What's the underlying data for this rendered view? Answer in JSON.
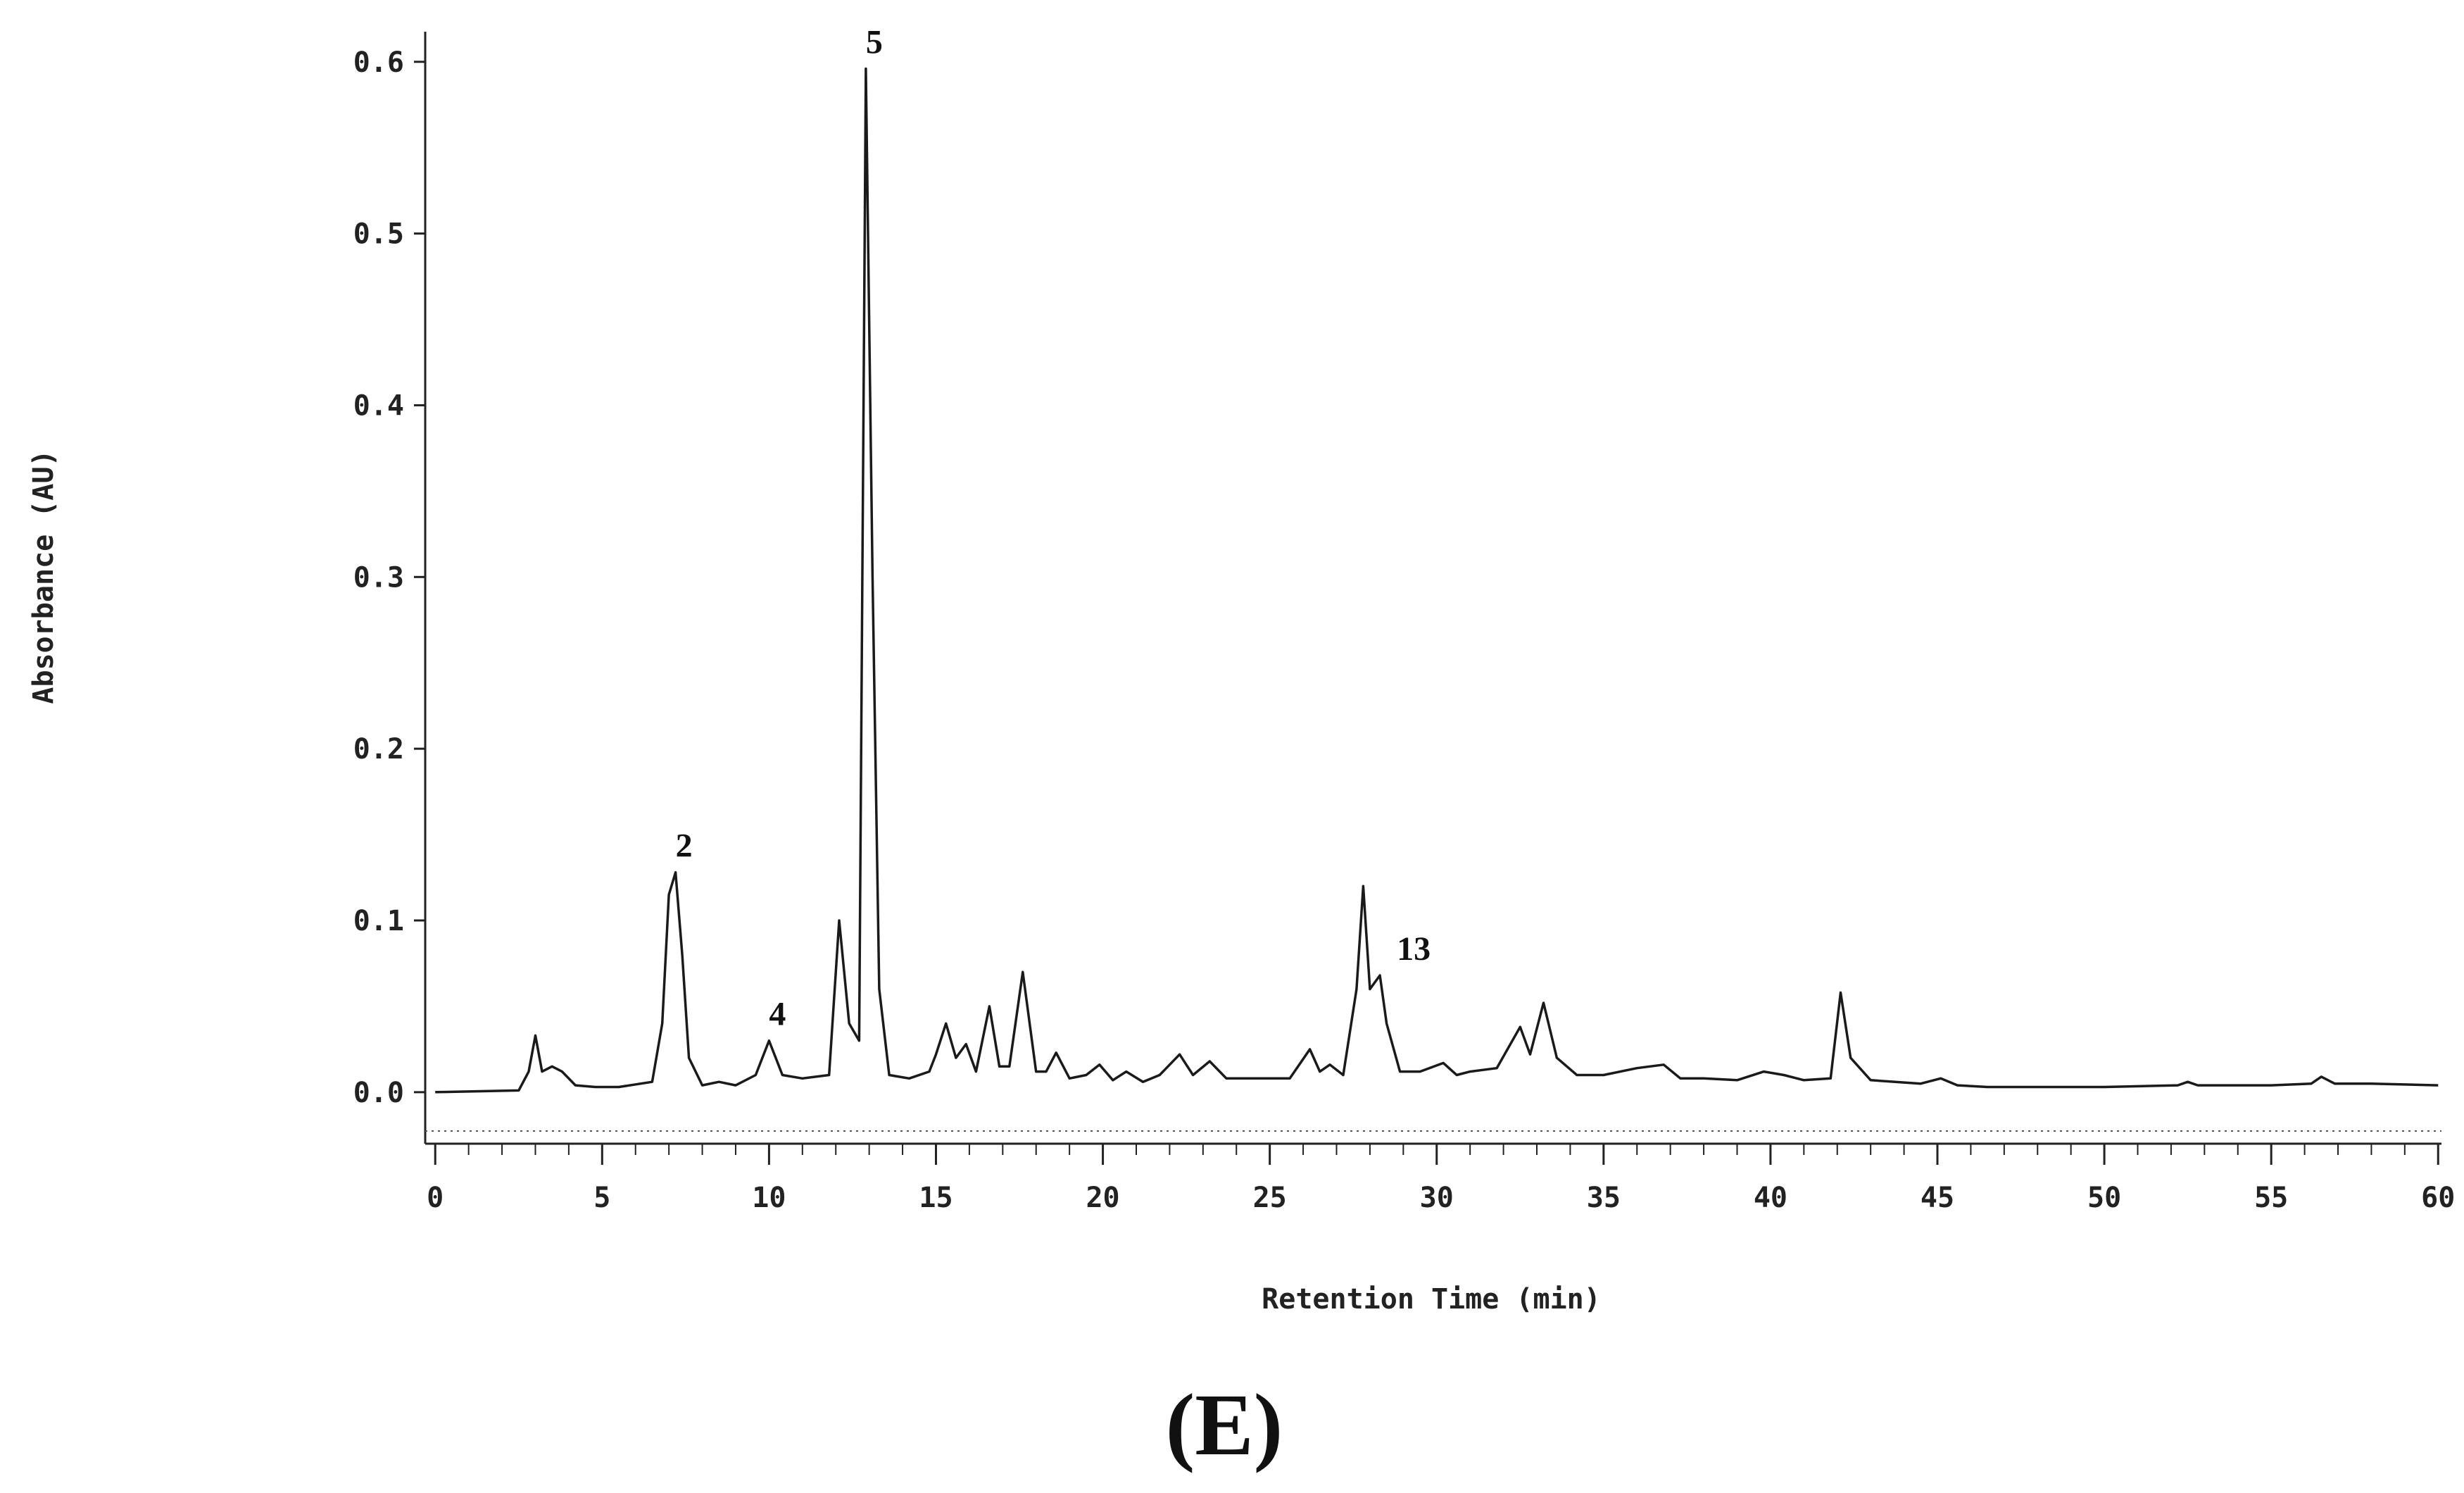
{
  "chart_data": {
    "type": "line",
    "xlabel": "Retention Time (min)",
    "ylabel": "Absorbance (AU)",
    "panel_label": "(E)",
    "xlim": [
      -0.3,
      60.1
    ],
    "ylim": [
      -0.03,
      0.62
    ],
    "xticks": [
      0,
      5,
      10,
      15,
      20,
      25,
      30,
      35,
      40,
      45,
      50,
      55,
      60
    ],
    "xminorticks": [
      1,
      2,
      3,
      4,
      6,
      7,
      8,
      9,
      11,
      12,
      13,
      14,
      16,
      17,
      18,
      19,
      21,
      22,
      23,
      24,
      26,
      27,
      28,
      29,
      31,
      32,
      33,
      34,
      36,
      37,
      38,
      39,
      41,
      42,
      43,
      44,
      46,
      47,
      48,
      49,
      51,
      52,
      53,
      54,
      56,
      57,
      58,
      59
    ],
    "yticks": [
      {
        "value": 0,
        "label": "0.0"
      },
      0.1,
      0.2,
      0.3,
      0.4,
      0.5,
      0.6
    ],
    "series": [
      {
        "color": "#1a1a1a",
        "x": [
          0,
          2.5,
          2.8,
          3.0,
          3.2,
          3.5,
          3.8,
          4.2,
          4.8,
          5.5,
          6.5,
          6.8,
          7.0,
          7.2,
          7.4,
          7.6,
          8.0,
          8.5,
          9.0,
          9.6,
          10.0,
          10.4,
          11.0,
          11.8,
          12.1,
          12.4,
          12.7,
          12.9,
          13.1,
          13.3,
          13.6,
          14.2,
          14.8,
          15.0,
          15.3,
          15.6,
          15.9,
          16.2,
          16.6,
          16.9,
          17.2,
          17.6,
          18.0,
          18.3,
          18.6,
          19.0,
          19.5,
          19.9,
          20.3,
          20.7,
          21.2,
          21.7,
          22.3,
          22.7,
          23.2,
          23.7,
          24.3,
          25.0,
          25.6,
          26.2,
          26.5,
          26.8,
          27.2,
          27.6,
          27.8,
          28.0,
          28.3,
          28.5,
          28.9,
          29.5,
          30.2,
          30.6,
          31.0,
          31.8,
          32.5,
          32.8,
          33.2,
          33.6,
          34.2,
          35.0,
          36.0,
          36.8,
          37.3,
          38.0,
          39.0,
          39.8,
          40.4,
          41.0,
          41.8,
          42.1,
          42.4,
          43.0,
          44.5,
          45.1,
          45.6,
          46.5,
          50,
          52.2,
          52.5,
          52.8,
          55,
          56.2,
          56.5,
          56.9,
          58,
          60
        ],
        "values": [
          0,
          0.001,
          0.012,
          0.033,
          0.012,
          0.015,
          0.012,
          0.004,
          0.003,
          0.003,
          0.006,
          0.04,
          0.115,
          0.128,
          0.08,
          0.02,
          0.004,
          0.006,
          0.004,
          0.01,
          0.03,
          0.01,
          0.008,
          0.01,
          0.1,
          0.04,
          0.03,
          0.596,
          0.3,
          0.06,
          0.01,
          0.008,
          0.012,
          0.022,
          0.04,
          0.02,
          0.028,
          0.012,
          0.05,
          0.015,
          0.015,
          0.07,
          0.012,
          0.012,
          0.023,
          0.008,
          0.01,
          0.016,
          0.007,
          0.012,
          0.006,
          0.01,
          0.022,
          0.01,
          0.018,
          0.008,
          0.008,
          0.008,
          0.008,
          0.025,
          0.012,
          0.016,
          0.01,
          0.06,
          0.12,
          0.06,
          0.068,
          0.04,
          0.012,
          0.012,
          0.017,
          0.01,
          0.012,
          0.014,
          0.038,
          0.022,
          0.052,
          0.02,
          0.01,
          0.01,
          0.014,
          0.016,
          0.008,
          0.008,
          0.007,
          0.012,
          0.01,
          0.007,
          0.008,
          0.058,
          0.02,
          0.007,
          0.005,
          0.008,
          0.004,
          0.003,
          0.003,
          0.004,
          0.006,
          0.004,
          0.004,
          0.005,
          0.009,
          0.005,
          0.005,
          0.004
        ]
      }
    ],
    "annotations": [
      {
        "text": "2",
        "x": 7.2,
        "y": 0.128
      },
      {
        "text": "4",
        "x": 10.0,
        "y": 0.03
      },
      {
        "text": "5",
        "x": 12.9,
        "y": 0.596
      },
      {
        "text": "13",
        "x": 28.3,
        "y": 0.068
      }
    ]
  }
}
